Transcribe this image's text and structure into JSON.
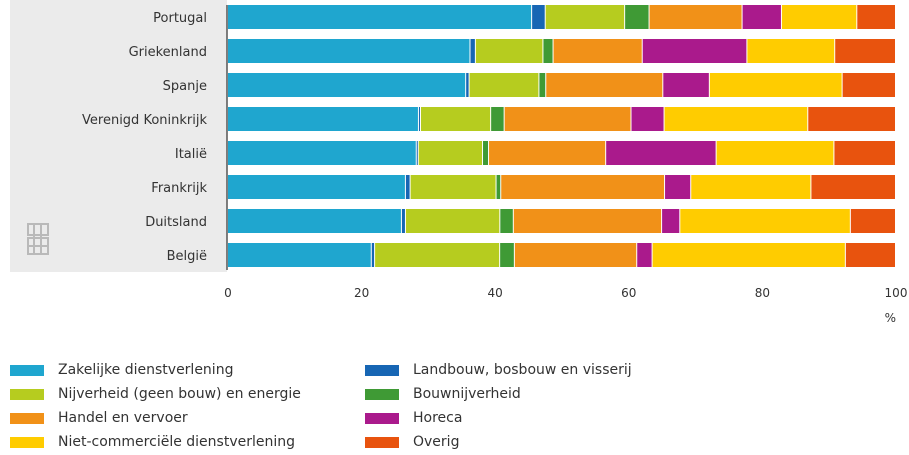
{
  "chart_data": {
    "type": "bar",
    "orientation": "horizontal",
    "stacked": true,
    "title": "",
    "xlabel": "",
    "ylabel": "",
    "x_unit": "%",
    "xlim": [
      0,
      100
    ],
    "x_ticks": [
      "0",
      "20",
      "40",
      "60",
      "80",
      "100"
    ],
    "grid": false,
    "legend_position": "bottom",
    "categories": [
      "Portugal",
      "Griekenland",
      "Spanje",
      "Verenigd Koninkrijk",
      "Italië",
      "Frankrijk",
      "Duitsland",
      "België"
    ],
    "series": [
      {
        "name": "Zakelijke dienstverlening",
        "color": "#1fa6cf",
        "values": [
          44.8,
          35.9,
          34.8,
          28.3,
          28.2,
          26.5,
          25.8,
          21.5
        ]
      },
      {
        "name": "Landbouw, bosbouw en visserij",
        "color": "#1766b4",
        "values": [
          2.0,
          0.8,
          0.5,
          0.3,
          0.3,
          0.7,
          0.6,
          0.5
        ]
      },
      {
        "name": "Nijverheid (geen bouw) en energie",
        "color": "#b6cc1f",
        "values": [
          11.7,
          10.0,
          10.2,
          10.4,
          9.6,
          12.8,
          14.0,
          18.7
        ]
      },
      {
        "name": "Bouwnijverheid",
        "color": "#3f9a35",
        "values": [
          3.6,
          1.5,
          1.0,
          2.0,
          0.9,
          0.7,
          2.0,
          2.2
        ]
      },
      {
        "name": "Handel en vervoer",
        "color": "#f19118",
        "values": [
          13.7,
          13.2,
          17.1,
          18.8,
          17.5,
          24.4,
          22.0,
          18.3
        ]
      },
      {
        "name": "Horeca",
        "color": "#aa1a8c",
        "values": [
          5.8,
          15.5,
          6.8,
          4.9,
          16.5,
          3.9,
          2.7,
          2.3
        ]
      },
      {
        "name": "Niet-commerciële dienstverlening",
        "color": "#ffcc00",
        "values": [
          11.1,
          13.0,
          19.4,
          21.3,
          17.6,
          17.9,
          25.3,
          28.9
        ]
      },
      {
        "name": "Overig",
        "color": "#e8530e",
        "values": [
          5.7,
          9.0,
          7.8,
          13.0,
          9.2,
          12.6,
          6.7,
          7.5
        ]
      }
    ]
  },
  "colors": {
    "panel_background": "#ebebeb",
    "axis_line": "#555555",
    "text": "#333333"
  },
  "icons": {
    "watermark": "cbs-logo-icon"
  }
}
